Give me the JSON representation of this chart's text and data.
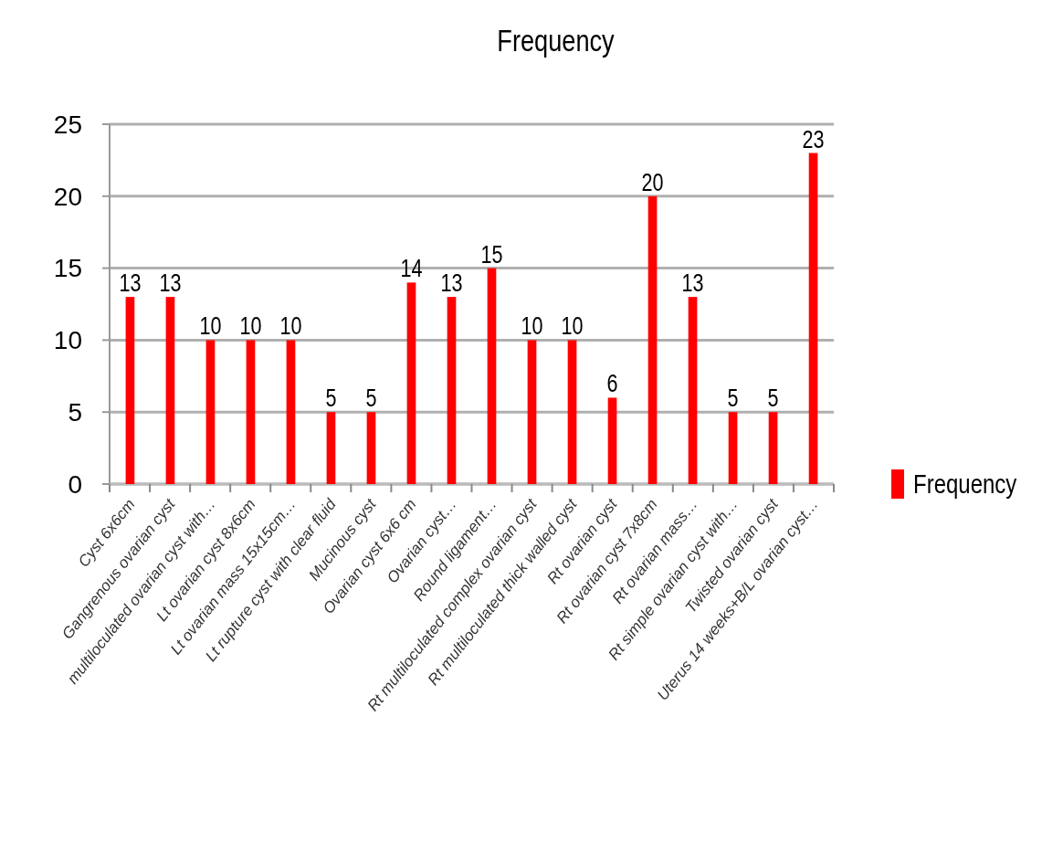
{
  "chart_data": {
    "type": "bar",
    "title": "Frequency",
    "categories": [
      "Cyst 6x6cm",
      "Gangrenous ovarian cyst",
      "multiloculated ovarian cyst with…",
      "Lt ovarian cyst 8x6cm",
      "Lt ovarian mass 15x15cm…",
      "Lt rupture cyst with clear fluid",
      "Mucinous cyst",
      "Ovarian cyst 6x6 cm",
      "Ovarian cyst…",
      "Round ligament…",
      "Rt multiloculated complex ovarian cyst",
      "Rt multiloculated thick walled cyst",
      "Rt ovarian cyst",
      "Rt ovarian cyst 7x8cm",
      "Rt ovarian mass…",
      "Rt simple ovarian cyst with…",
      "Twisted ovarian cyst",
      "Uterus 14 weeks+B/L ovarian cyst…"
    ],
    "series": [
      {
        "name": "Frequency",
        "color": "#ff0000",
        "values": [
          13,
          13,
          10,
          10,
          10,
          5,
          5,
          14,
          13,
          15,
          10,
          10,
          6,
          20,
          13,
          5,
          5,
          23
        ]
      }
    ],
    "ylim": [
      0,
      25
    ],
    "yticks": [
      0,
      5,
      10,
      15,
      20,
      25
    ],
    "grid": "y",
    "legend": "right",
    "data_labels": true
  }
}
